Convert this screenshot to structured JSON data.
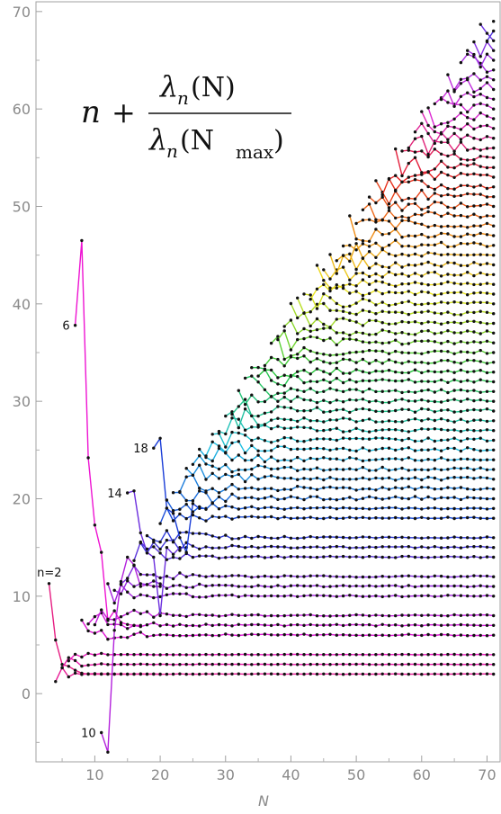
{
  "chart_data": {
    "type": "line",
    "title": "",
    "formula": {
      "lhs": "n",
      "plus": "+",
      "num_lambda": "λ",
      "num_sub": "n",
      "num_arg": "(N)",
      "den_lambda": "λ",
      "den_sub": "n",
      "den_arg_open": "(N",
      "den_arg_sub": "max",
      "den_arg_close": ")"
    },
    "xlabel": "N",
    "ylabel": "",
    "xlim": [
      1,
      72
    ],
    "ylim": [
      -7,
      71
    ],
    "xticks": [
      10,
      20,
      30,
      40,
      50,
      60,
      70
    ],
    "yticks": [
      0,
      10,
      20,
      30,
      40,
      50,
      60,
      70
    ],
    "grid": false,
    "n_range": [
      2,
      71
    ],
    "annotations": [
      {
        "text": "n=2",
        "x": 3,
        "y": 11.3
      },
      {
        "text": "6",
        "x": 7,
        "y": 37.8
      },
      {
        "text": "10",
        "x": 11,
        "y": -4
      },
      {
        "text": "14",
        "x": 15,
        "y": 20.6
      },
      {
        "text": "18",
        "x": 19,
        "y": 25.2
      }
    ],
    "series": [
      {
        "n": 2,
        "x": [
          3,
          4,
          5,
          6,
          7,
          8,
          9,
          10,
          11,
          12,
          13,
          14,
          15,
          16,
          17,
          18,
          19,
          20
        ],
        "y": [
          11.3,
          5.5,
          3.0,
          2.8,
          2.4,
          2.1,
          2.0,
          2.0,
          2.0,
          2.0,
          2.0,
          2.0,
          2.0,
          2.0,
          2.0,
          2.0,
          2.0,
          2.0
        ]
      },
      {
        "n": 6,
        "x": [
          7,
          8,
          9,
          10,
          11,
          12,
          13,
          14,
          15,
          16,
          17
        ],
        "y": [
          37.8,
          46.5,
          24.2,
          17.3,
          14.5,
          7.5,
          8.5,
          7.3,
          7.1,
          7.0,
          7.0
        ]
      },
      {
        "n": 10,
        "x": [
          11,
          12,
          13,
          14,
          15,
          16,
          17,
          18,
          19,
          20
        ],
        "y": [
          -4.0,
          -6.0,
          6.5,
          11.5,
          14.0,
          13.2,
          11.0,
          11.2,
          11.0,
          11.0
        ]
      },
      {
        "n": 14,
        "x": [
          15,
          16,
          17,
          18,
          19,
          20,
          21,
          22,
          23,
          24
        ],
        "y": [
          20.6,
          20.8,
          16.5,
          14.5,
          14.0,
          8.0,
          15.0,
          14.3,
          15.0,
          15.0
        ]
      },
      {
        "n": 18,
        "x": [
          19,
          20,
          21,
          22,
          23,
          24,
          25,
          26,
          27
        ],
        "y": [
          25.2,
          26.2,
          19.0,
          18.5,
          16.0,
          14.5,
          19.5,
          19.0,
          19.0
        ]
      }
    ]
  }
}
